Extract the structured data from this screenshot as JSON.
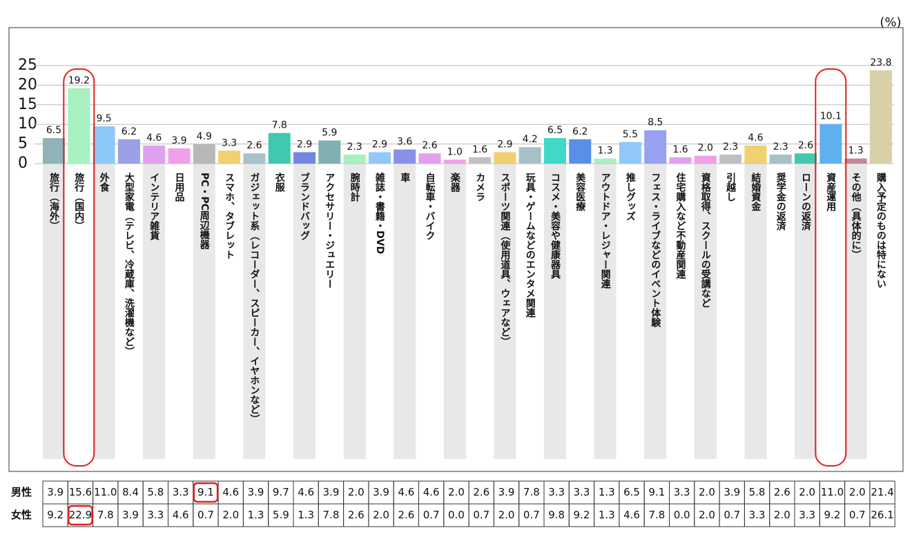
{
  "chart_data": {
    "type": "bar",
    "ylabel": "(%)",
    "categories": [
      "旅行（海外）",
      "旅行（国内）",
      "外食",
      "大型家電（テレビ、冷蔵庫、洗濯機など）",
      "インテリア雑貨",
      "日用品",
      "PC・PC周辺機器",
      "スマホ、タブレット",
      "ガジェット系（レコーダー、スピーカー、イヤホンなど）",
      "衣服",
      "ブランドバッグ",
      "アクセサリー・ジュエリー",
      "腕時計",
      "雑誌・書籍・DVD",
      "車",
      "自転車・バイク",
      "楽器",
      "カメラ",
      "スポーツ関連（使用道具、ウェアなど）",
      "玩具・ゲームなどのエンタメ関連",
      "コスメ・美容や健康器具",
      "美容医療",
      "アウトドア・レジャー関連",
      "推しグッズ",
      "フェス・ライブなどのイベント体験",
      "住宅購入など不動産関連",
      "資格取得、スクールの受講など",
      "引越し",
      "結婚資金",
      "奨学金の返済",
      "ローンの返済",
      "資産運用",
      "その他（具体的に）",
      "購入予定のものは特にない"
    ],
    "values": [
      6.5,
      19.2,
      9.5,
      6.2,
      4.6,
      3.9,
      4.9,
      3.3,
      2.6,
      7.8,
      2.9,
      5.9,
      2.3,
      2.9,
      3.6,
      2.6,
      1.0,
      1.6,
      2.9,
      4.2,
      6.5,
      6.2,
      1.3,
      5.5,
      8.5,
      1.6,
      2.0,
      2.3,
      4.6,
      2.3,
      2.6,
      10.1,
      1.3,
      23.8
    ],
    "value_labels": [
      "6.5",
      "19.2",
      "9.5",
      "6.2",
      "4.6",
      "3.9",
      "4.9",
      "3.3",
      "2.6",
      "7.8",
      "2.9",
      "5.9",
      "2.3",
      "2.9",
      "3.6",
      "2.6",
      "1.0",
      "1.6",
      "2.9",
      "4.2",
      "6.5",
      "6.2",
      "1.3",
      "5.5",
      "8.5",
      "1.6",
      "2.0",
      "2.3",
      "4.6",
      "2.3",
      "2.6",
      "10.1",
      "1.3",
      "23.8"
    ],
    "colors": [
      "#8fb3b8",
      "#a8f0c0",
      "#8ec8f8",
      "#9aa0e8",
      "#e0a0f0",
      "#f0a0e8",
      "#b8b8b8",
      "#f0d070",
      "#a8c0c8",
      "#40c8b0",
      "#7088e0",
      "#80b0b0",
      "#a8f0c0",
      "#90c8f8",
      "#8890e8",
      "#e0a0f0",
      "#f0a0e8",
      "#c0c0c0",
      "#f0d070",
      "#a8c0c8",
      "#40d8c8",
      "#5890e8",
      "#a8f0c0",
      "#90c8f8",
      "#98a0f0",
      "#e0a0f0",
      "#f0a0e8",
      "#c0c0c0",
      "#f0d070",
      "#a8c0c8",
      "#40c8b0",
      "#60b0f0",
      "#c08898",
      "#d8d0a8"
    ],
    "ylim": [
      0,
      25
    ],
    "yticks": [
      0,
      5,
      10,
      15,
      20,
      25
    ],
    "grid": true
  },
  "table": {
    "row_labels": [
      "男性",
      "女性"
    ],
    "rows": [
      [
        "3.9",
        "15.6",
        "11.0",
        "8.4",
        "5.8",
        "3.3",
        "9.1",
        "4.6",
        "3.9",
        "9.7",
        "4.6",
        "3.9",
        "2.0",
        "3.9",
        "4.6",
        "4.6",
        "2.0",
        "2.6",
        "3.9",
        "7.8",
        "3.3",
        "3.3",
        "1.3",
        "6.5",
        "9.1",
        "3.3",
        "2.0",
        "3.9",
        "5.8",
        "2.6",
        "2.0",
        "11.0",
        "2.0",
        "21.4"
      ],
      [
        "9.2",
        "22.9",
        "7.8",
        "3.9",
        "3.3",
        "4.6",
        "0.7",
        "2.0",
        "1.3",
        "5.9",
        "1.3",
        "7.8",
        "2.6",
        "2.0",
        "2.6",
        "0.7",
        "0.0",
        "0.7",
        "2.0",
        "0.7",
        "9.8",
        "9.2",
        "1.3",
        "4.6",
        "7.8",
        "0.0",
        "2.0",
        "0.7",
        "3.3",
        "2.0",
        "3.3",
        "9.2",
        "0.7",
        "26.1"
      ]
    ]
  }
}
